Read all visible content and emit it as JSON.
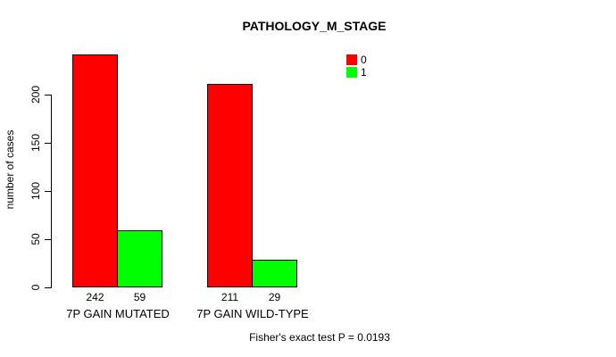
{
  "chart_data": {
    "type": "bar",
    "title": "PATHOLOGY_M_STAGE",
    "ylabel": "number of cases",
    "xlabel": "",
    "categories": [
      "7P GAIN MUTATED",
      "7P GAIN WILD-TYPE"
    ],
    "series": [
      {
        "name": "0",
        "color": "#ff0000",
        "values": [
          242,
          211
        ]
      },
      {
        "name": "1",
        "color": "#00ff00",
        "values": [
          59,
          29
        ]
      }
    ],
    "yticks": [
      "0",
      "50",
      "100",
      "150",
      "200"
    ],
    "ylim": [
      0,
      250
    ],
    "grid": false,
    "legend_position": "top-right",
    "legend_items": [
      {
        "label": "0",
        "color": "#ff0000"
      },
      {
        "label": "1",
        "color": "#00ff00"
      }
    ],
    "annotation": "Fisher's exact test P = 0.0193",
    "axis_color": "#000000"
  }
}
